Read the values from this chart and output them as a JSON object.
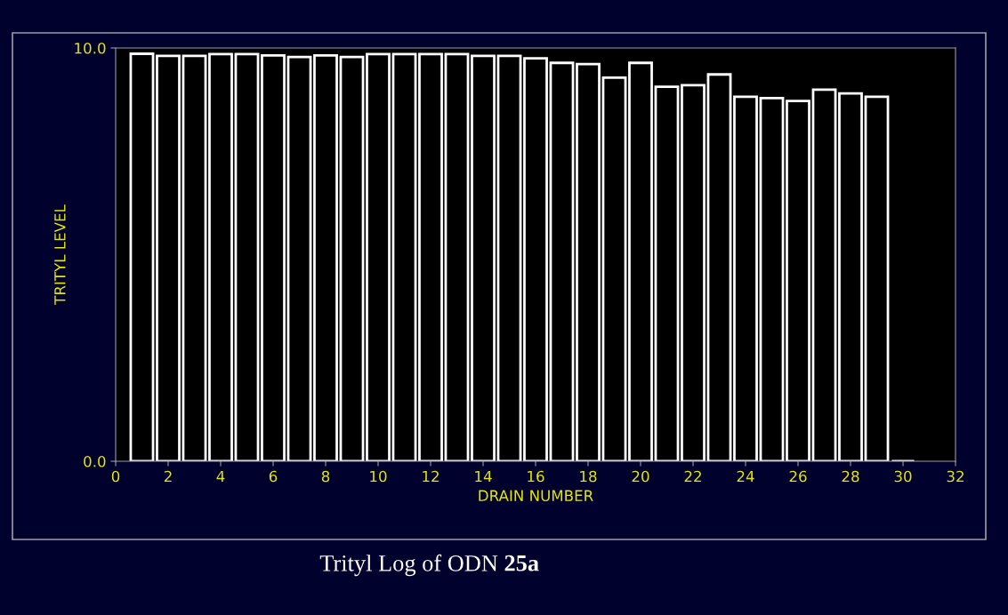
{
  "chart_data": {
    "type": "bar",
    "xlabel": "DRAIN NUMBER",
    "ylabel": "TRITYL LEVEL",
    "x": [
      1,
      2,
      3,
      4,
      5,
      6,
      7,
      8,
      9,
      10,
      11,
      12,
      13,
      14,
      15,
      16,
      17,
      18,
      19,
      20,
      21,
      22,
      23,
      24,
      25,
      26,
      27,
      28,
      29,
      30
    ],
    "values": [
      9.86,
      9.81,
      9.81,
      9.85,
      9.85,
      9.82,
      9.78,
      9.82,
      9.78,
      9.85,
      9.85,
      9.85,
      9.85,
      9.81,
      9.81,
      9.75,
      9.64,
      9.61,
      9.28,
      9.64,
      9.06,
      9.1,
      9.36,
      8.82,
      8.79,
      8.72,
      8.99,
      8.9,
      8.82,
      0
    ],
    "color": "#ffffff",
    "xlim": [
      0,
      32
    ],
    "xticks": [
      0,
      2,
      4,
      6,
      8,
      10,
      12,
      14,
      16,
      18,
      20,
      22,
      24,
      26,
      28,
      30,
      32
    ],
    "ylim": [
      0,
      10
    ],
    "yticks": [
      {
        "value": 0,
        "label": "0.0"
      },
      {
        "value": 10,
        "label": "10.0"
      }
    ],
    "grid": false,
    "annotations": [
      "Trityl Log of ODN 25a"
    ]
  }
}
